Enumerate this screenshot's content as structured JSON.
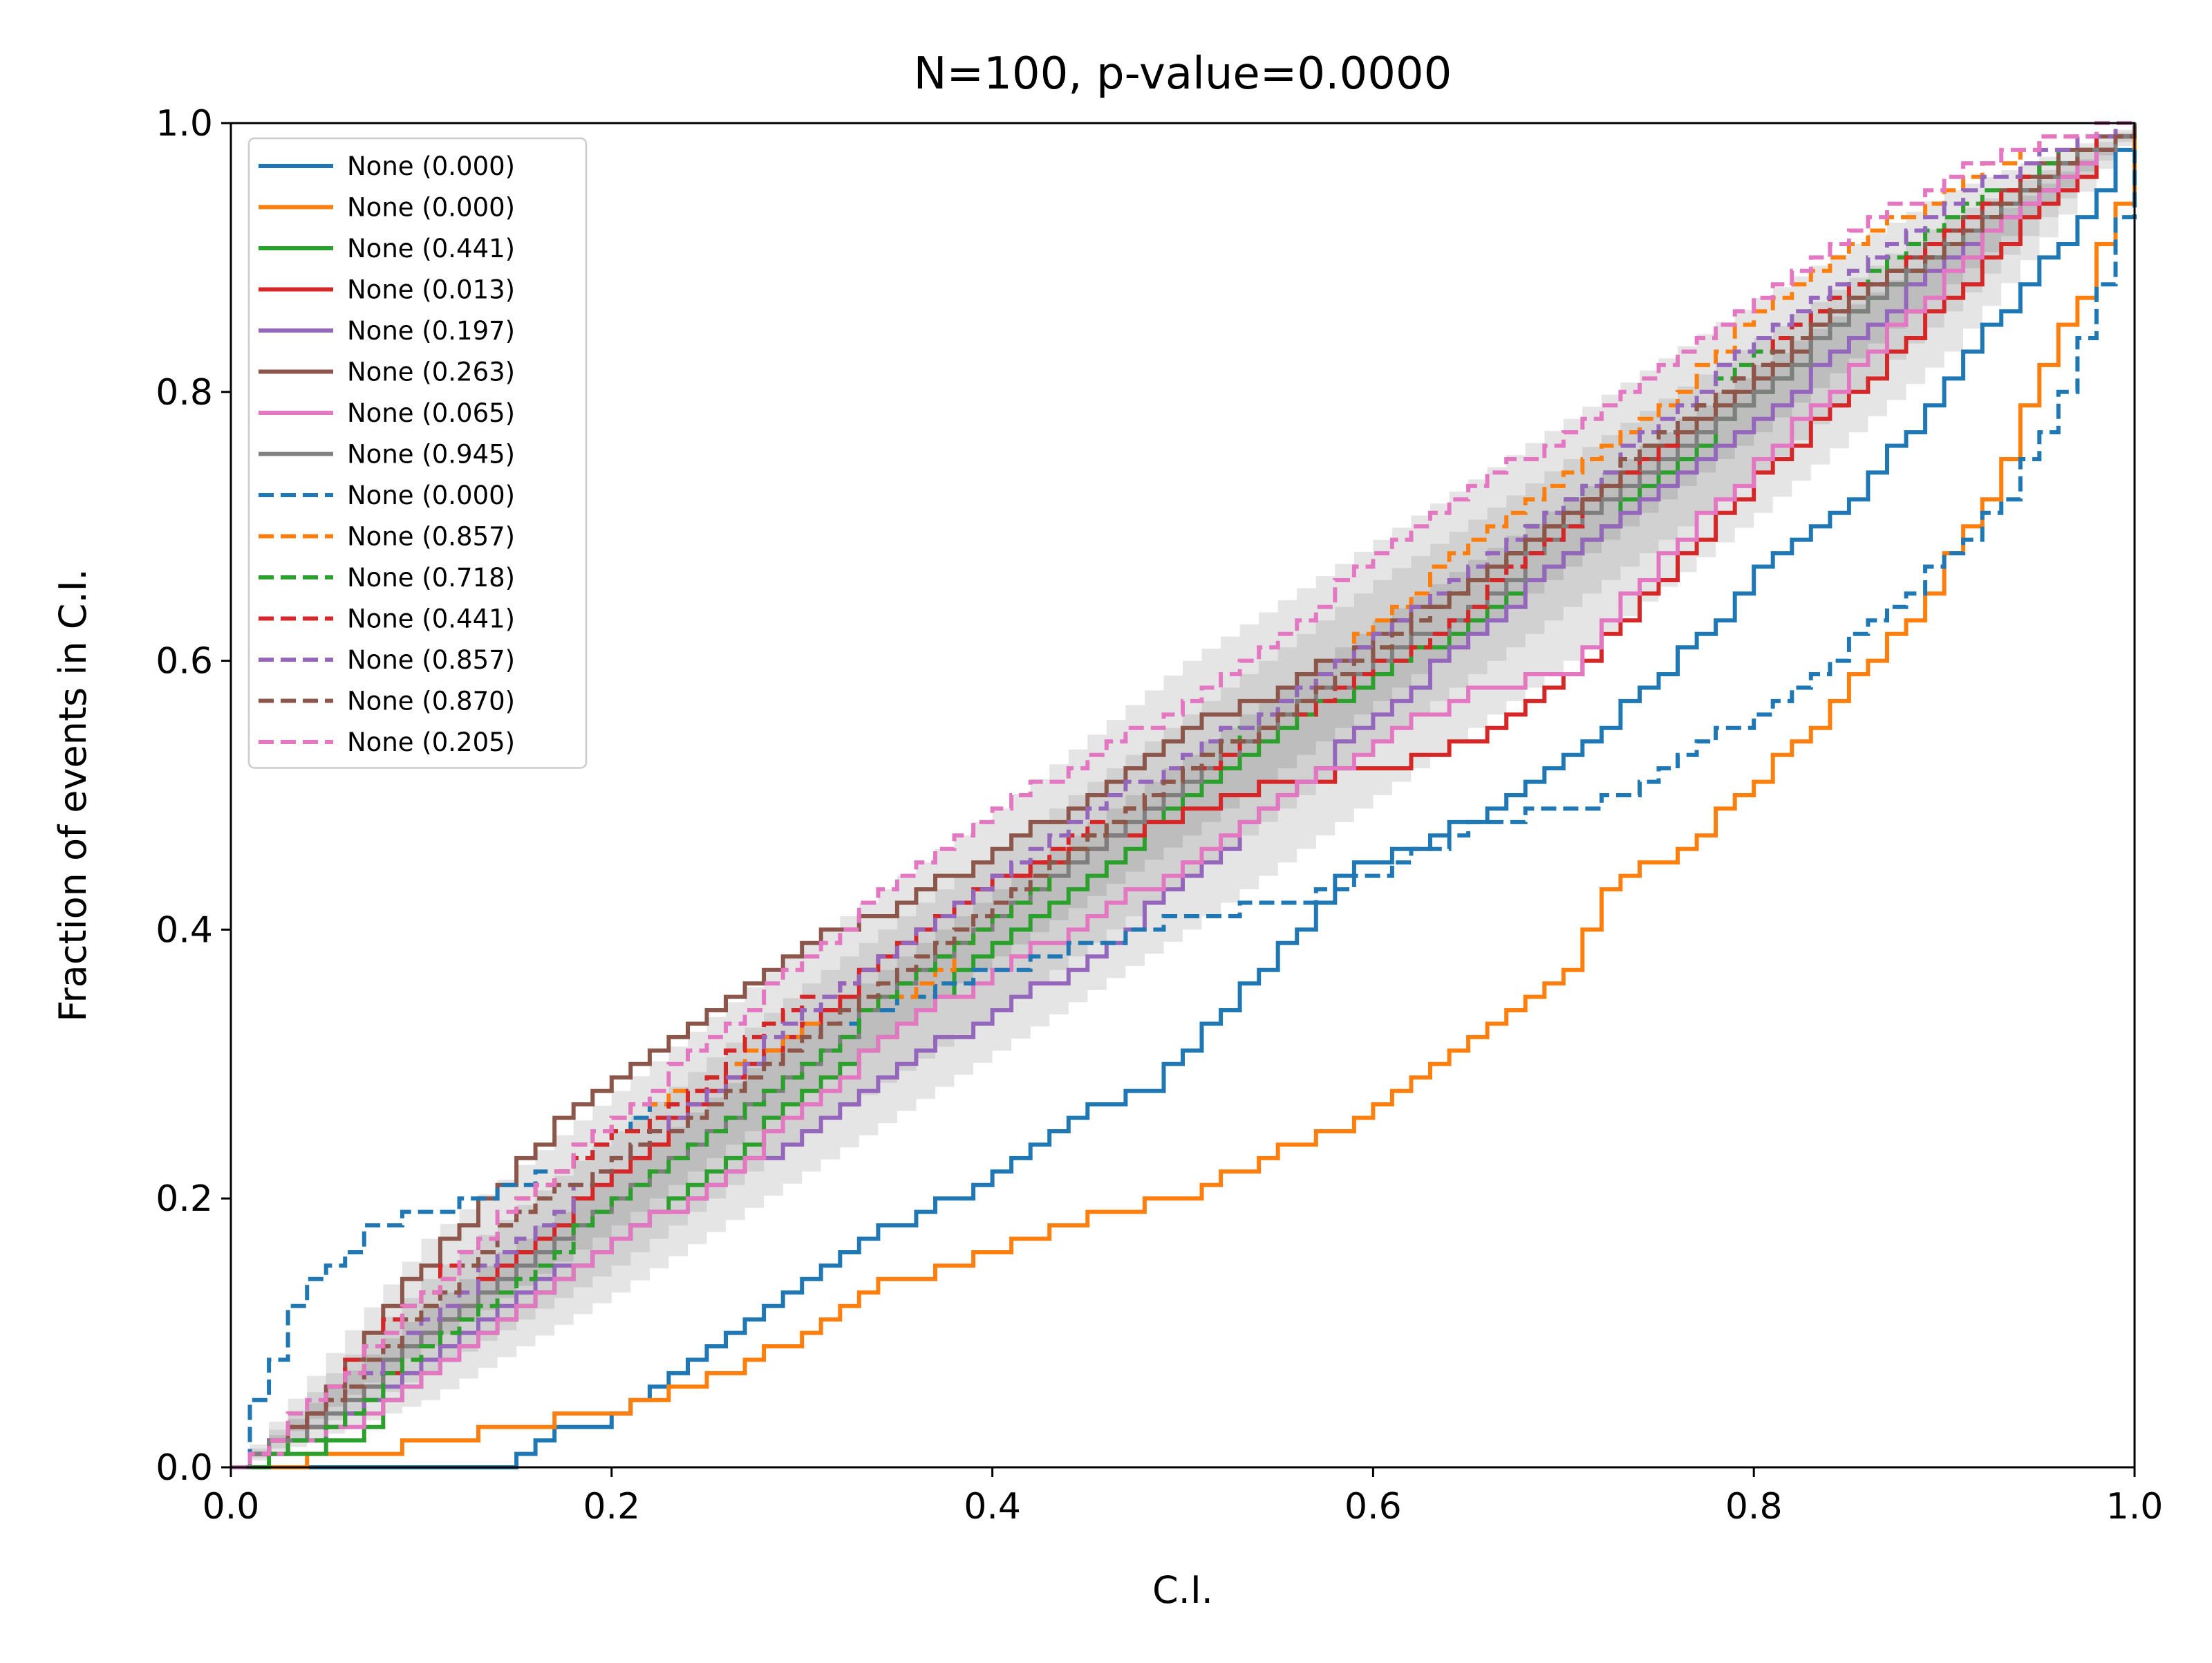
{
  "chart_data": {
    "type": "line",
    "title": "N=100, p-value=0.0000",
    "xlabel": "C.I.",
    "ylabel": "Fraction of events in C.I.",
    "xlim": [
      0,
      1
    ],
    "ylim": [
      0,
      1
    ],
    "x_ticks": [
      "0.0",
      "0.2",
      "0.4",
      "0.6",
      "0.8",
      "1.0"
    ],
    "y_ticks": [
      "0.0",
      "0.2",
      "0.4",
      "0.6",
      "0.8",
      "1.0"
    ],
    "grid": false,
    "legend_position": "upper-left",
    "n_events": 100,
    "bands": [
      {
        "level": "outer",
        "color": "#e5e5e5",
        "x": [
          0.0,
          0.1,
          0.2,
          0.3,
          0.4,
          0.5,
          0.6,
          0.7,
          0.8,
          0.9,
          1.0
        ],
        "lower": [
          0.0,
          0.05,
          0.13,
          0.22,
          0.31,
          0.4,
          0.5,
          0.6,
          0.71,
          0.83,
          1.0
        ],
        "upper": [
          0.0,
          0.17,
          0.28,
          0.39,
          0.49,
          0.6,
          0.69,
          0.78,
          0.87,
          0.95,
          1.0
        ]
      },
      {
        "level": "middle",
        "color": "#d1d1d1",
        "x": [
          0.0,
          0.1,
          0.2,
          0.3,
          0.4,
          0.5,
          0.6,
          0.7,
          0.8,
          0.9,
          1.0
        ],
        "lower": [
          0.0,
          0.07,
          0.15,
          0.25,
          0.34,
          0.44,
          0.54,
          0.64,
          0.74,
          0.86,
          1.0
        ],
        "upper": [
          0.0,
          0.14,
          0.25,
          0.36,
          0.46,
          0.56,
          0.66,
          0.75,
          0.84,
          0.93,
          1.0
        ]
      },
      {
        "level": "inner",
        "color": "#bdbdbd",
        "x": [
          0.0,
          0.1,
          0.2,
          0.3,
          0.4,
          0.5,
          0.6,
          0.7,
          0.8,
          0.9,
          1.0
        ],
        "lower": [
          0.0,
          0.09,
          0.18,
          0.28,
          0.38,
          0.47,
          0.57,
          0.67,
          0.77,
          0.88,
          1.0
        ],
        "upper": [
          0.0,
          0.12,
          0.22,
          0.33,
          0.43,
          0.53,
          0.63,
          0.72,
          0.82,
          0.91,
          1.0
        ]
      }
    ],
    "series": [
      {
        "name": "None (0.000)",
        "color": "#1f77b4",
        "dash": "solid",
        "x": [
          0.0,
          0.14,
          0.16,
          0.2,
          0.22,
          0.24,
          0.28,
          0.3,
          0.34,
          0.38,
          0.4,
          0.44,
          0.48,
          0.5,
          0.52,
          0.56,
          0.58,
          0.62,
          0.66,
          0.7,
          0.74,
          0.78,
          0.8,
          0.85,
          0.9,
          0.94,
          0.97,
          1.0
        ],
        "y": [
          0.0,
          0.0,
          0.02,
          0.04,
          0.06,
          0.08,
          0.12,
          0.14,
          0.18,
          0.2,
          0.22,
          0.26,
          0.28,
          0.31,
          0.34,
          0.4,
          0.44,
          0.46,
          0.49,
          0.53,
          0.58,
          0.63,
          0.67,
          0.72,
          0.81,
          0.88,
          0.93,
          1.0
        ]
      },
      {
        "name": "None (0.000)",
        "color": "#ff7f0e",
        "dash": "solid",
        "x": [
          0.0,
          0.07,
          0.1,
          0.14,
          0.2,
          0.22,
          0.26,
          0.3,
          0.34,
          0.38,
          0.42,
          0.46,
          0.5,
          0.54,
          0.58,
          0.62,
          0.66,
          0.7,
          0.72,
          0.76,
          0.8,
          0.84,
          0.88,
          0.92,
          0.95,
          0.97,
          0.99,
          1.0
        ],
        "y": [
          0.0,
          0.01,
          0.02,
          0.03,
          0.04,
          0.05,
          0.07,
          0.1,
          0.14,
          0.15,
          0.17,
          0.19,
          0.2,
          0.23,
          0.25,
          0.29,
          0.33,
          0.37,
          0.43,
          0.46,
          0.51,
          0.57,
          0.63,
          0.72,
          0.82,
          0.87,
          0.94,
          1.0
        ]
      },
      {
        "name": "None (0.441)",
        "color": "#2ca02c",
        "dash": "solid",
        "x": [
          0.0,
          0.06,
          0.1,
          0.15,
          0.2,
          0.25,
          0.3,
          0.35,
          0.4,
          0.45,
          0.5,
          0.55,
          0.6,
          0.65,
          0.7,
          0.75,
          0.8,
          0.85,
          0.9,
          0.95,
          1.0
        ],
        "y": [
          0.0,
          0.02,
          0.07,
          0.12,
          0.17,
          0.22,
          0.28,
          0.33,
          0.39,
          0.44,
          0.5,
          0.55,
          0.59,
          0.63,
          0.68,
          0.74,
          0.8,
          0.86,
          0.91,
          0.96,
          1.0
        ]
      },
      {
        "name": "None (0.013)",
        "color": "#d62728",
        "dash": "solid",
        "x": [
          0.0,
          0.06,
          0.1,
          0.15,
          0.2,
          0.25,
          0.3,
          0.35,
          0.4,
          0.45,
          0.5,
          0.55,
          0.6,
          0.65,
          0.7,
          0.75,
          0.8,
          0.85,
          0.9,
          0.95,
          1.0
        ],
        "y": [
          0.0,
          0.04,
          0.1,
          0.16,
          0.22,
          0.28,
          0.33,
          0.39,
          0.44,
          0.46,
          0.49,
          0.51,
          0.52,
          0.54,
          0.59,
          0.66,
          0.74,
          0.8,
          0.87,
          0.94,
          1.0
        ]
      },
      {
        "name": "None (0.197)",
        "color": "#9467bd",
        "dash": "solid",
        "x": [
          0.0,
          0.05,
          0.1,
          0.15,
          0.2,
          0.25,
          0.3,
          0.35,
          0.4,
          0.45,
          0.5,
          0.55,
          0.6,
          0.65,
          0.7,
          0.75,
          0.8,
          0.85,
          0.9,
          0.95,
          1.0
        ],
        "y": [
          0.0,
          0.03,
          0.08,
          0.13,
          0.17,
          0.21,
          0.25,
          0.3,
          0.34,
          0.38,
          0.44,
          0.5,
          0.56,
          0.62,
          0.68,
          0.73,
          0.78,
          0.84,
          0.9,
          0.95,
          1.0
        ]
      },
      {
        "name": "None (0.263)",
        "color": "#8c564b",
        "dash": "solid",
        "x": [
          0.0,
          0.04,
          0.08,
          0.13,
          0.18,
          0.22,
          0.26,
          0.3,
          0.35,
          0.4,
          0.45,
          0.5,
          0.55,
          0.6,
          0.65,
          0.7,
          0.75,
          0.8,
          0.85,
          0.9,
          0.95,
          1.0
        ],
        "y": [
          0.0,
          0.04,
          0.12,
          0.2,
          0.27,
          0.31,
          0.35,
          0.39,
          0.42,
          0.46,
          0.5,
          0.55,
          0.58,
          0.62,
          0.66,
          0.71,
          0.76,
          0.81,
          0.87,
          0.92,
          0.97,
          1.0
        ]
      },
      {
        "name": "None (0.065)",
        "color": "#e377c2",
        "dash": "solid",
        "x": [
          0.0,
          0.06,
          0.1,
          0.15,
          0.2,
          0.25,
          0.3,
          0.35,
          0.4,
          0.45,
          0.5,
          0.55,
          0.6,
          0.65,
          0.7,
          0.73,
          0.78,
          0.83,
          0.88,
          0.93,
          1.0
        ],
        "y": [
          0.0,
          0.03,
          0.07,
          0.12,
          0.17,
          0.21,
          0.27,
          0.33,
          0.37,
          0.41,
          0.45,
          0.5,
          0.54,
          0.58,
          0.59,
          0.65,
          0.72,
          0.79,
          0.86,
          0.93,
          1.0
        ]
      },
      {
        "name": "None (0.945)",
        "color": "#7f7f7f",
        "dash": "solid",
        "x": [
          0.0,
          0.05,
          0.1,
          0.15,
          0.2,
          0.25,
          0.3,
          0.35,
          0.4,
          0.45,
          0.5,
          0.55,
          0.6,
          0.65,
          0.7,
          0.75,
          0.8,
          0.85,
          0.9,
          0.95,
          1.0
        ],
        "y": [
          0.0,
          0.04,
          0.1,
          0.15,
          0.2,
          0.25,
          0.3,
          0.36,
          0.41,
          0.46,
          0.51,
          0.56,
          0.6,
          0.64,
          0.7,
          0.75,
          0.8,
          0.86,
          0.91,
          0.96,
          1.0
        ]
      },
      {
        "name": "None (0.000)",
        "color": "#1f77b4",
        "dash": "dashed",
        "x": [
          0.0,
          0.01,
          0.02,
          0.03,
          0.05,
          0.07,
          0.1,
          0.13,
          0.17,
          0.2,
          0.24,
          0.28,
          0.32,
          0.36,
          0.4,
          0.45,
          0.5,
          0.55,
          0.6,
          0.65,
          0.7,
          0.73,
          0.76,
          0.8,
          0.83,
          0.87,
          0.9,
          0.93,
          0.96,
          0.98,
          1.0
        ],
        "y": [
          0.0,
          0.05,
          0.08,
          0.12,
          0.15,
          0.18,
          0.19,
          0.2,
          0.22,
          0.25,
          0.28,
          0.31,
          0.33,
          0.35,
          0.37,
          0.39,
          0.41,
          0.42,
          0.44,
          0.48,
          0.49,
          0.5,
          0.53,
          0.56,
          0.59,
          0.64,
          0.68,
          0.72,
          0.8,
          0.88,
          0.98
        ]
      },
      {
        "name": "None (0.857)",
        "color": "#ff7f0e",
        "dash": "dashed",
        "x": [
          0.0,
          0.05,
          0.1,
          0.15,
          0.2,
          0.25,
          0.3,
          0.35,
          0.4,
          0.45,
          0.5,
          0.55,
          0.6,
          0.65,
          0.7,
          0.75,
          0.8,
          0.85,
          0.9,
          0.95,
          1.0
        ],
        "y": [
          0.0,
          0.05,
          0.12,
          0.2,
          0.26,
          0.29,
          0.33,
          0.35,
          0.41,
          0.47,
          0.52,
          0.56,
          0.63,
          0.69,
          0.74,
          0.79,
          0.86,
          0.91,
          0.95,
          0.99,
          1.0
        ]
      },
      {
        "name": "None (0.718)",
        "color": "#2ca02c",
        "dash": "dashed",
        "x": [
          0.0,
          0.05,
          0.1,
          0.15,
          0.2,
          0.25,
          0.3,
          0.35,
          0.4,
          0.45,
          0.5,
          0.55,
          0.6,
          0.65,
          0.7,
          0.75,
          0.8,
          0.85,
          0.9,
          0.95,
          1.0
        ],
        "y": [
          0.0,
          0.03,
          0.09,
          0.14,
          0.2,
          0.25,
          0.3,
          0.36,
          0.41,
          0.47,
          0.52,
          0.57,
          0.61,
          0.66,
          0.72,
          0.77,
          0.83,
          0.88,
          0.93,
          0.97,
          1.0
        ]
      },
      {
        "name": "None (0.441)",
        "color": "#d62728",
        "dash": "dashed",
        "x": [
          0.0,
          0.04,
          0.08,
          0.13,
          0.18,
          0.23,
          0.28,
          0.33,
          0.38,
          0.43,
          0.48,
          0.53,
          0.58,
          0.63,
          0.68,
          0.73,
          0.78,
          0.83,
          0.88,
          0.93,
          1.0
        ],
        "y": [
          0.0,
          0.04,
          0.11,
          0.17,
          0.23,
          0.27,
          0.33,
          0.37,
          0.42,
          0.46,
          0.5,
          0.54,
          0.58,
          0.62,
          0.68,
          0.74,
          0.8,
          0.86,
          0.9,
          0.95,
          1.0
        ]
      },
      {
        "name": "None (0.857)",
        "color": "#9467bd",
        "dash": "dashed",
        "x": [
          0.0,
          0.05,
          0.1,
          0.15,
          0.2,
          0.25,
          0.3,
          0.35,
          0.4,
          0.45,
          0.5,
          0.55,
          0.6,
          0.65,
          0.7,
          0.75,
          0.8,
          0.85,
          0.9,
          0.95,
          1.0
        ],
        "y": [
          0.0,
          0.05,
          0.11,
          0.17,
          0.23,
          0.28,
          0.34,
          0.39,
          0.44,
          0.49,
          0.53,
          0.57,
          0.62,
          0.67,
          0.72,
          0.78,
          0.84,
          0.89,
          0.94,
          0.98,
          1.0
        ]
      },
      {
        "name": "None (0.870)",
        "color": "#8c564b",
        "dash": "dashed",
        "x": [
          0.0,
          0.05,
          0.1,
          0.15,
          0.2,
          0.25,
          0.3,
          0.35,
          0.4,
          0.45,
          0.5,
          0.55,
          0.6,
          0.65,
          0.7,
          0.75,
          0.8,
          0.85,
          0.9,
          0.95,
          1.0
        ],
        "y": [
          0.0,
          0.05,
          0.12,
          0.19,
          0.23,
          0.27,
          0.32,
          0.37,
          0.42,
          0.47,
          0.52,
          0.56,
          0.61,
          0.66,
          0.71,
          0.77,
          0.82,
          0.87,
          0.91,
          0.96,
          1.0
        ]
      },
      {
        "name": "None (0.205)",
        "color": "#e377c2",
        "dash": "dashed",
        "x": [
          0.0,
          0.05,
          0.1,
          0.15,
          0.2,
          0.25,
          0.3,
          0.35,
          0.4,
          0.45,
          0.5,
          0.55,
          0.6,
          0.65,
          0.7,
          0.75,
          0.8,
          0.85,
          0.9,
          0.95,
          1.0
        ],
        "y": [
          0.0,
          0.06,
          0.13,
          0.2,
          0.26,
          0.32,
          0.38,
          0.44,
          0.49,
          0.53,
          0.57,
          0.62,
          0.68,
          0.73,
          0.77,
          0.82,
          0.87,
          0.92,
          0.96,
          0.99,
          1.0
        ]
      }
    ]
  }
}
